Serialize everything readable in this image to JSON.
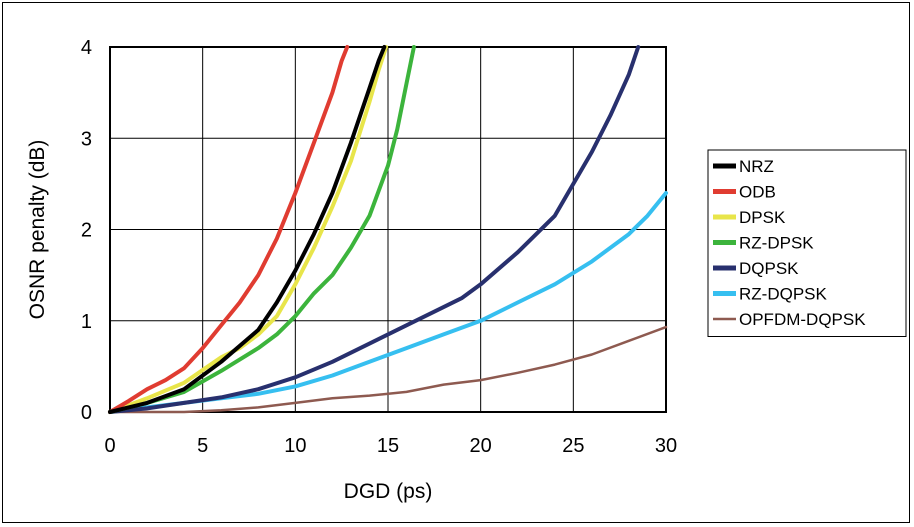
{
  "chart_data": {
    "type": "line",
    "xlabel": "DGD (ps)",
    "ylabel": "OSNR penalty (dB)",
    "xlim": [
      0,
      30
    ],
    "ylim": [
      0,
      4
    ],
    "xticks": [
      "0",
      "5",
      "10",
      "15",
      "20",
      "25",
      "30"
    ],
    "yticks": [
      "0",
      "1",
      "2",
      "3",
      "4"
    ],
    "grid": true,
    "legend_position": "right",
    "series": [
      {
        "name": "NRZ",
        "color": "#000000",
        "x": [
          0,
          2,
          4,
          6,
          8,
          9,
          10,
          11,
          12,
          13,
          14,
          14.5,
          14.8
        ],
        "y": [
          0,
          0.1,
          0.25,
          0.55,
          0.9,
          1.2,
          1.55,
          1.95,
          2.4,
          2.95,
          3.55,
          3.85,
          4.0
        ]
      },
      {
        "name": "ODB",
        "color": "#e03c31",
        "x": [
          0,
          1,
          2,
          3,
          4,
          5,
          6,
          7,
          8,
          9,
          10,
          11,
          12,
          12.5,
          12.8
        ],
        "y": [
          0,
          0.12,
          0.25,
          0.35,
          0.48,
          0.7,
          0.95,
          1.2,
          1.5,
          1.9,
          2.4,
          2.95,
          3.5,
          3.85,
          4.0
        ]
      },
      {
        "name": "DPSK",
        "color": "#e8e54a",
        "x": [
          0,
          2,
          4,
          6,
          7,
          8,
          9,
          10,
          11,
          12,
          13,
          14,
          14.5,
          14.9
        ],
        "y": [
          0,
          0.15,
          0.32,
          0.6,
          0.7,
          0.85,
          1.05,
          1.4,
          1.8,
          2.25,
          2.75,
          3.4,
          3.75,
          4.0
        ]
      },
      {
        "name": "RZ-DPSK",
        "color": "#3cb43c",
        "x": [
          0,
          2,
          4,
          6,
          8,
          9,
          10,
          11,
          12,
          13,
          14,
          15,
          15.5,
          16,
          16.4
        ],
        "y": [
          0,
          0.1,
          0.22,
          0.45,
          0.7,
          0.85,
          1.05,
          1.3,
          1.5,
          1.8,
          2.15,
          2.7,
          3.1,
          3.6,
          4.0
        ]
      },
      {
        "name": "DQPSK",
        "color": "#28306e",
        "x": [
          0,
          2,
          4,
          6,
          8,
          10,
          12,
          14,
          16,
          18,
          19,
          20,
          22,
          24,
          25,
          26,
          27,
          28,
          28.5
        ],
        "y": [
          0,
          0.04,
          0.1,
          0.16,
          0.25,
          0.38,
          0.55,
          0.75,
          0.95,
          1.15,
          1.25,
          1.4,
          1.75,
          2.15,
          2.5,
          2.85,
          3.25,
          3.7,
          4.0
        ]
      },
      {
        "name": "RZ-DQPSK",
        "color": "#36bff0",
        "x": [
          0,
          2,
          4,
          6,
          8,
          10,
          12,
          14,
          16,
          18,
          20,
          22,
          24,
          26,
          28,
          29,
          30
        ],
        "y": [
          0,
          0.05,
          0.1,
          0.15,
          0.2,
          0.28,
          0.4,
          0.55,
          0.7,
          0.85,
          1.0,
          1.2,
          1.4,
          1.65,
          1.95,
          2.15,
          2.4
        ]
      },
      {
        "name": "OPFDM-DQPSK",
        "color": "#8e5a50",
        "x": [
          0,
          2,
          4,
          6,
          8,
          10,
          12,
          14,
          16,
          18,
          20,
          22,
          24,
          26,
          28,
          30
        ],
        "y": [
          0,
          0.0,
          0.0,
          0.02,
          0.05,
          0.1,
          0.15,
          0.18,
          0.22,
          0.3,
          0.35,
          0.43,
          0.52,
          0.63,
          0.78,
          0.93
        ]
      }
    ]
  }
}
